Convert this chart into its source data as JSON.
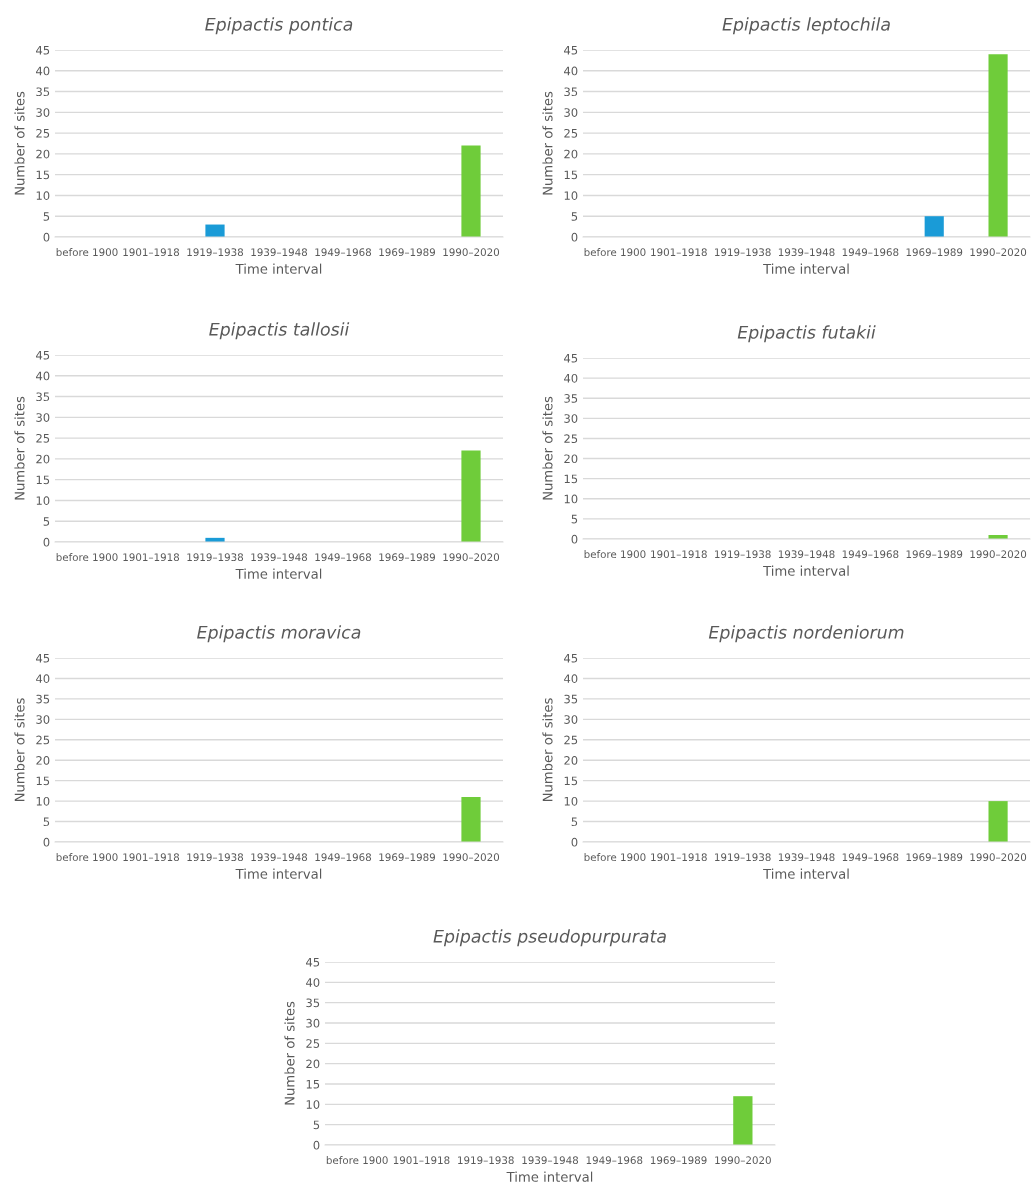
{
  "chart_data": [
    {
      "type": "bar",
      "title": "Epipactis pontica",
      "xlabel": "Time interval",
      "ylabel": "Number of sites",
      "categories": [
        "before 1900",
        "1901–1918",
        "1919–1938",
        "1939–1948",
        "1949–1968",
        "1969–1989",
        "1990–2020"
      ],
      "values": [
        0,
        0,
        3,
        0,
        0,
        0,
        22
      ],
      "colors": [
        "#1a9bd7",
        "#1a9bd7",
        "#1a9bd7",
        "#1a9bd7",
        "#1a9bd7",
        "#1a9bd7",
        "#6fcc3a"
      ],
      "ylim": [
        0,
        45
      ],
      "yticks": [
        0,
        5,
        10,
        15,
        20,
        25,
        30,
        35,
        40,
        45
      ],
      "grid": "y"
    },
    {
      "type": "bar",
      "title": "Epipactis leptochila",
      "xlabel": "Time interval",
      "ylabel": "Number of sites",
      "categories": [
        "before 1900",
        "1901–1918",
        "1919–1938",
        "1939–1948",
        "1949–1968",
        "1969–1989",
        "1990–2020"
      ],
      "values": [
        0,
        0,
        0,
        0,
        0,
        5,
        44
      ],
      "colors": [
        "#1a9bd7",
        "#1a9bd7",
        "#1a9bd7",
        "#1a9bd7",
        "#1a9bd7",
        "#1a9bd7",
        "#6fcc3a"
      ],
      "ylim": [
        0,
        45
      ],
      "yticks": [
        0,
        5,
        10,
        15,
        20,
        25,
        30,
        35,
        40,
        45
      ],
      "grid": "y"
    },
    {
      "type": "bar",
      "title": "Epipactis tallosii",
      "xlabel": "Time interval",
      "ylabel": "Number of sites",
      "categories": [
        "before 1900",
        "1901–1918",
        "1919–1938",
        "1939–1948",
        "1949–1968",
        "1969–1989",
        "1990–2020"
      ],
      "values": [
        0,
        0,
        1,
        0,
        0,
        0,
        22
      ],
      "colors": [
        "#1a9bd7",
        "#1a9bd7",
        "#1a9bd7",
        "#1a9bd7",
        "#1a9bd7",
        "#1a9bd7",
        "#6fcc3a"
      ],
      "ylim": [
        0,
        45
      ],
      "yticks": [
        0,
        5,
        10,
        15,
        20,
        25,
        30,
        35,
        40,
        45
      ],
      "grid": "y"
    },
    {
      "type": "bar",
      "title": "Epipactis futakii",
      "xlabel": "Time interval",
      "ylabel": "Number of sites",
      "categories": [
        "before 1900",
        "1901–1918",
        "1919–1938",
        "1939–1948",
        "1949–1968",
        "1969–1989",
        "1990–2020"
      ],
      "values": [
        0,
        0,
        0,
        0,
        0,
        0,
        1
      ],
      "colors": [
        "#1a9bd7",
        "#1a9bd7",
        "#1a9bd7",
        "#1a9bd7",
        "#1a9bd7",
        "#1a9bd7",
        "#6fcc3a"
      ],
      "ylim": [
        0,
        45
      ],
      "yticks": [
        0,
        5,
        10,
        15,
        20,
        25,
        30,
        35,
        40,
        45
      ],
      "grid": "y"
    },
    {
      "type": "bar",
      "title": "Epipactis moravica",
      "xlabel": "Time interval",
      "ylabel": "Number of sites",
      "categories": [
        "before 1900",
        "1901–1918",
        "1919–1938",
        "1939–1948",
        "1949–1968",
        "1969–1989",
        "1990–2020"
      ],
      "values": [
        0,
        0,
        0,
        0,
        0,
        0,
        11
      ],
      "colors": [
        "#1a9bd7",
        "#1a9bd7",
        "#1a9bd7",
        "#1a9bd7",
        "#1a9bd7",
        "#1a9bd7",
        "#6fcc3a"
      ],
      "ylim": [
        0,
        45
      ],
      "yticks": [
        0,
        5,
        10,
        15,
        20,
        25,
        30,
        35,
        40,
        45
      ],
      "grid": "y"
    },
    {
      "type": "bar",
      "title": "Epipactis nordeniorum",
      "xlabel": "Time interval",
      "ylabel": "Number of sites",
      "categories": [
        "before 1900",
        "1901–1918",
        "1919–1938",
        "1939–1948",
        "1949–1968",
        "1969–1989",
        "1990–2020"
      ],
      "values": [
        0,
        0,
        0,
        0,
        0,
        0,
        10
      ],
      "colors": [
        "#1a9bd7",
        "#1a9bd7",
        "#1a9bd7",
        "#1a9bd7",
        "#1a9bd7",
        "#1a9bd7",
        "#6fcc3a"
      ],
      "ylim": [
        0,
        45
      ],
      "yticks": [
        0,
        5,
        10,
        15,
        20,
        25,
        30,
        35,
        40,
        45
      ],
      "grid": "y"
    },
    {
      "type": "bar",
      "title": "Epipactis pseudopurpurata",
      "xlabel": "Time interval",
      "ylabel": "Number of sites",
      "categories": [
        "before 1900",
        "1901–1918",
        "1919–1938",
        "1939–1948",
        "1949–1968",
        "1969–1989",
        "1990–2020"
      ],
      "values": [
        0,
        0,
        0,
        0,
        0,
        0,
        12
      ],
      "colors": [
        "#1a9bd7",
        "#1a9bd7",
        "#1a9bd7",
        "#1a9bd7",
        "#1a9bd7",
        "#1a9bd7",
        "#6fcc3a"
      ],
      "ylim": [
        0,
        45
      ],
      "yticks": [
        0,
        5,
        10,
        15,
        20,
        25,
        30,
        35,
        40,
        45
      ],
      "grid": "y"
    }
  ]
}
